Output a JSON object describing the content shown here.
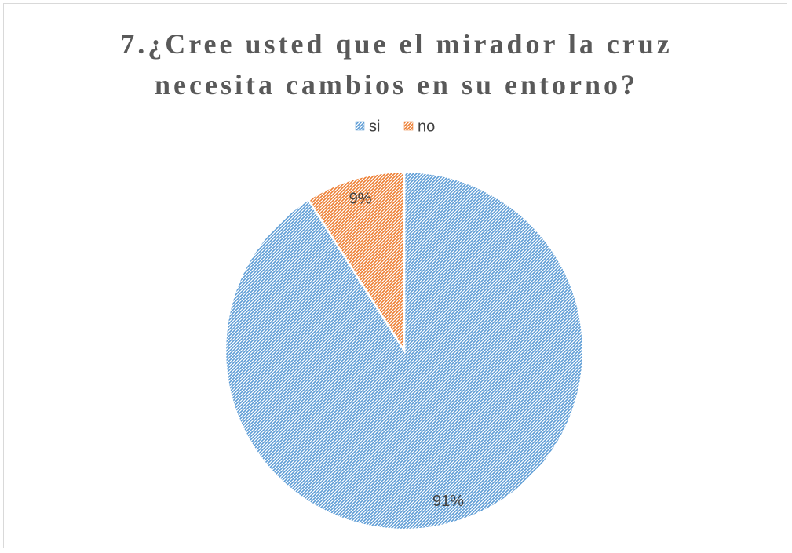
{
  "chart_data": {
    "type": "pie",
    "title": "7.¿Cree usted que el mirador la cruz necesita cambios en su entorno?",
    "categories": [
      "si",
      "no"
    ],
    "values": [
      91,
      9
    ],
    "value_labels": [
      "91%",
      "9%"
    ],
    "colors": [
      "#5b9bd5",
      "#ed7d31"
    ],
    "legend": "top"
  }
}
